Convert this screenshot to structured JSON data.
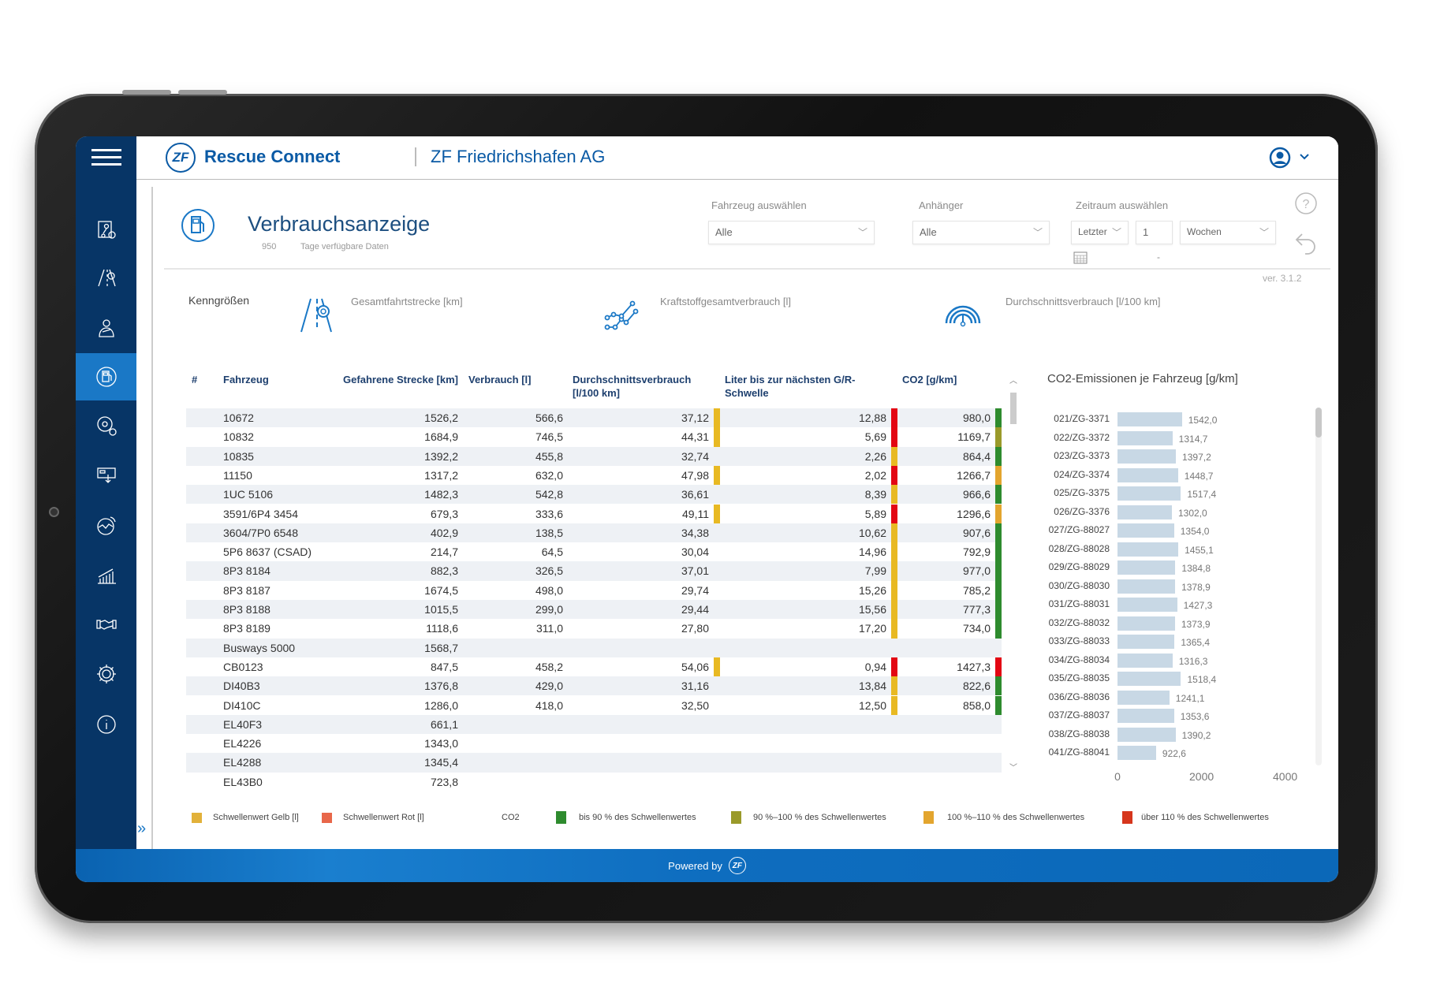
{
  "colors": {
    "sidebar": "#073566",
    "accent": "#1a78c6",
    "title": "#0a5aa5",
    "yellow": "#e8b923",
    "red": "#e30613",
    "green": "#2e8b2e",
    "olive": "#9a9a2a",
    "orange": "#e3a52e",
    "legend_red": "#e8674a",
    "legend_over": "#d6361c",
    "chart_bar": "#c8d8e5"
  },
  "header": {
    "app_name": "Rescue Connect",
    "company": "ZF Friedrichshafen AG",
    "logo": "ZF",
    "user_icon": "user-circle-icon"
  },
  "sidebar": {
    "items": [
      {
        "icon": "map-route-icon"
      },
      {
        "icon": "road-location-icon"
      },
      {
        "icon": "driver-icon"
      },
      {
        "icon": "fuel-pump-icon",
        "active": true
      },
      {
        "icon": "steering-settings-icon"
      },
      {
        "icon": "download-screen-icon"
      },
      {
        "icon": "signal-globe-icon"
      },
      {
        "icon": "bar-chart-icon"
      },
      {
        "icon": "handshake-icon"
      },
      {
        "icon": "gear-icon"
      },
      {
        "icon": "info-icon"
      }
    ],
    "expand": "»"
  },
  "page": {
    "title": "Verbrauchsanzeige",
    "days": "950",
    "days_label": "Tage verfügbare Daten",
    "version": "ver. 3.1.2"
  },
  "filters": {
    "vehicle": {
      "label": "Fahrzeug auswählen",
      "value": "Alle"
    },
    "trailer": {
      "label": "Anhänger",
      "value": "Alle"
    },
    "period": {
      "label": "Zeitraum auswählen",
      "mode": "Letzter",
      "count": "1",
      "unit": "Wochen",
      "range_sep": "-"
    }
  },
  "kpis": {
    "label": "Kenngrößen",
    "items": [
      {
        "label": "Gesamtfahrtstrecke [km]",
        "icon": "road-pin-icon"
      },
      {
        "label": "Kraftstoffgesamtverbrauch [l]",
        "icon": "scatter-line-icon"
      },
      {
        "label": "Durchschnittsverbrauch [l/100 km]",
        "icon": "gauge-icon"
      }
    ]
  },
  "table": {
    "columns": [
      "#",
      "Fahrzeug",
      "Gefahrene Strecke [km]",
      "Verbrauch [l]",
      "Durchschnittsverbrauch [l/100 km]",
      "Liter bis zur nächsten G/R-Schwelle",
      "CO2 [g/km]"
    ],
    "rows": [
      {
        "vehicle": "10672",
        "distance": "1526,2",
        "consumption": "566,6",
        "avg": "37,12",
        "avg_flag": "yellow",
        "liters": "12,88",
        "liters_flag": "red",
        "co2": "980,0",
        "co2_flag": "green"
      },
      {
        "vehicle": "10832",
        "distance": "1684,9",
        "consumption": "746,5",
        "avg": "44,31",
        "avg_flag": "yellow",
        "liters": "5,69",
        "liters_flag": "red",
        "co2": "1169,7",
        "co2_flag": "olive"
      },
      {
        "vehicle": "10835",
        "distance": "1392,2",
        "consumption": "455,8",
        "avg": "32,74",
        "avg_flag": "",
        "liters": "2,26",
        "liters_flag": "yellow",
        "co2": "864,4",
        "co2_flag": "green"
      },
      {
        "vehicle": "11150",
        "distance": "1317,2",
        "consumption": "632,0",
        "avg": "47,98",
        "avg_flag": "yellow",
        "liters": "2,02",
        "liters_flag": "red",
        "co2": "1266,7",
        "co2_flag": "orange"
      },
      {
        "vehicle": "1UC 5106",
        "distance": "1482,3",
        "consumption": "542,8",
        "avg": "36,61",
        "avg_flag": "",
        "liters": "8,39",
        "liters_flag": "yellow",
        "co2": "966,6",
        "co2_flag": "green"
      },
      {
        "vehicle": "3591/6P4 3454",
        "distance": "679,3",
        "consumption": "333,6",
        "avg": "49,11",
        "avg_flag": "yellow",
        "liters": "5,89",
        "liters_flag": "red",
        "co2": "1296,6",
        "co2_flag": "orange"
      },
      {
        "vehicle": "3604/7P0 6548",
        "distance": "402,9",
        "consumption": "138,5",
        "avg": "34,38",
        "avg_flag": "",
        "liters": "10,62",
        "liters_flag": "yellow",
        "co2": "907,6",
        "co2_flag": "green"
      },
      {
        "vehicle": "5P6 8637 (CSAD)",
        "distance": "214,7",
        "consumption": "64,5",
        "avg": "30,04",
        "avg_flag": "",
        "liters": "14,96",
        "liters_flag": "yellow",
        "co2": "792,9",
        "co2_flag": "green"
      },
      {
        "vehicle": "8P3 8184",
        "distance": "882,3",
        "consumption": "326,5",
        "avg": "37,01",
        "avg_flag": "",
        "liters": "7,99",
        "liters_flag": "yellow",
        "co2": "977,0",
        "co2_flag": "green"
      },
      {
        "vehicle": "8P3 8187",
        "distance": "1674,5",
        "consumption": "498,0",
        "avg": "29,74",
        "avg_flag": "",
        "liters": "15,26",
        "liters_flag": "yellow",
        "co2": "785,2",
        "co2_flag": "green"
      },
      {
        "vehicle": "8P3 8188",
        "distance": "1015,5",
        "consumption": "299,0",
        "avg": "29,44",
        "avg_flag": "",
        "liters": "15,56",
        "liters_flag": "yellow",
        "co2": "777,3",
        "co2_flag": "green"
      },
      {
        "vehicle": "8P3 8189",
        "distance": "1118,6",
        "consumption": "311,0",
        "avg": "27,80",
        "avg_flag": "",
        "liters": "17,20",
        "liters_flag": "yellow",
        "co2": "734,0",
        "co2_flag": "green"
      },
      {
        "vehicle": "Busways 5000",
        "distance": "1568,7",
        "consumption": "",
        "avg": "",
        "avg_flag": "",
        "liters": "",
        "liters_flag": "",
        "co2": "",
        "co2_flag": ""
      },
      {
        "vehicle": "CB0123",
        "distance": "847,5",
        "consumption": "458,2",
        "avg": "54,06",
        "avg_flag": "yellow",
        "liters": "0,94",
        "liters_flag": "red",
        "co2": "1427,3",
        "co2_flag": "red"
      },
      {
        "vehicle": "DI40B3",
        "distance": "1376,8",
        "consumption": "429,0",
        "avg": "31,16",
        "avg_flag": "",
        "liters": "13,84",
        "liters_flag": "yellow",
        "co2": "822,6",
        "co2_flag": "green"
      },
      {
        "vehicle": "DI410C",
        "distance": "1286,0",
        "consumption": "418,0",
        "avg": "32,50",
        "avg_flag": "",
        "liters": "12,50",
        "liters_flag": "yellow",
        "co2": "858,0",
        "co2_flag": "green"
      },
      {
        "vehicle": "EL40F3",
        "distance": "661,1",
        "consumption": "",
        "avg": "",
        "avg_flag": "",
        "liters": "",
        "liters_flag": "",
        "co2": "",
        "co2_flag": ""
      },
      {
        "vehicle": "EL4226",
        "distance": "1343,0",
        "consumption": "",
        "avg": "",
        "avg_flag": "",
        "liters": "",
        "liters_flag": "",
        "co2": "",
        "co2_flag": ""
      },
      {
        "vehicle": "EL4288",
        "distance": "1345,4",
        "consumption": "",
        "avg": "",
        "avg_flag": "",
        "liters": "",
        "liters_flag": "",
        "co2": "",
        "co2_flag": ""
      },
      {
        "vehicle": "EL43B0",
        "distance": "723,8",
        "consumption": "",
        "avg": "",
        "avg_flag": "",
        "liters": "",
        "liters_flag": "",
        "co2": "",
        "co2_flag": ""
      }
    ]
  },
  "chart_data": {
    "type": "bar",
    "orientation": "horizontal",
    "title": "CO2-Emissionen je Fahrzeug [g/km]",
    "categories": [
      "021/ZG-3371",
      "022/ZG-3372",
      "023/ZG-3373",
      "024/ZG-3374",
      "025/ZG-3375",
      "026/ZG-3376",
      "027/ZG-88027",
      "028/ZG-88028",
      "029/ZG-88029",
      "030/ZG-88030",
      "031/ZG-88031",
      "032/ZG-88032",
      "033/ZG-88033",
      "034/ZG-88034",
      "035/ZG-88035",
      "036/ZG-88036",
      "037/ZG-88037",
      "038/ZG-88038",
      "041/ZG-88041"
    ],
    "values": [
      1542.0,
      1314.7,
      1397.2,
      1448.7,
      1517.4,
      1302.0,
      1354.0,
      1455.1,
      1384.8,
      1378.9,
      1427.3,
      1373.9,
      1365.4,
      1316.3,
      1518.4,
      1241.1,
      1353.6,
      1390.2,
      922.6
    ],
    "value_labels": [
      "1542,0",
      "1314,7",
      "1397,2",
      "1448,7",
      "1517,4",
      "1302,0",
      "1354,0",
      "1455,1",
      "1384,8",
      "1378,9",
      "1427,3",
      "1373,9",
      "1365,4",
      "1316,3",
      "1518,4",
      "1241,1",
      "1353,6",
      "1390,2",
      "922,6"
    ],
    "xlim": [
      0,
      4000
    ],
    "xticks": [
      "0",
      "2000",
      "4000"
    ],
    "grid": false
  },
  "legend": {
    "threshold_yellow": "Schwellenwert Gelb [l]",
    "threshold_red": "Schwellenwert Rot [l]",
    "co2_label": "CO2",
    "co2_green": "bis 90 % des Schwellenwertes",
    "co2_olive": "90 %–100 % des Schwellenwertes",
    "co2_orange": "100 %–110 % des Schwellenwertes",
    "co2_red": "über 110 % des Schwellenwertes"
  },
  "footer": {
    "powered_by": "Powered by",
    "logo": "ZF"
  }
}
